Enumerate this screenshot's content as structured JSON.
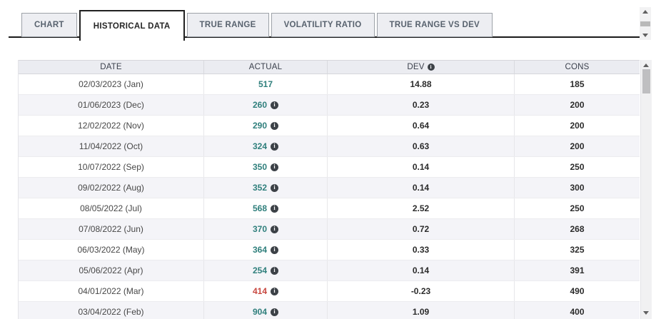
{
  "tabs": [
    {
      "label": "CHART",
      "active": false
    },
    {
      "label": "HISTORICAL DATA",
      "active": true
    },
    {
      "label": "TRUE RANGE",
      "active": false
    },
    {
      "label": "VOLATILITY RATIO",
      "active": false
    },
    {
      "label": "TRUE RANGE VS DEV",
      "active": false
    }
  ],
  "icons": {
    "info_glyph": "i"
  },
  "colors": {
    "actual_positive": "#2f7f7c",
    "actual_negative": "#c8473f"
  },
  "table": {
    "columns": [
      {
        "label": "DATE",
        "info": false
      },
      {
        "label": "ACTUAL",
        "info": false
      },
      {
        "label": "DEV",
        "info": true
      },
      {
        "label": "CONS",
        "info": false
      }
    ],
    "rows": [
      {
        "date": "02/03/2023 (Jan)",
        "actual": "517",
        "actual_color": "actual_positive",
        "has_info": false,
        "dev": "14.88",
        "cons": "185"
      },
      {
        "date": "01/06/2023 (Dec)",
        "actual": "260",
        "actual_color": "actual_positive",
        "has_info": true,
        "dev": "0.23",
        "cons": "200"
      },
      {
        "date": "12/02/2022 (Nov)",
        "actual": "290",
        "actual_color": "actual_positive",
        "has_info": true,
        "dev": "0.64",
        "cons": "200"
      },
      {
        "date": "11/04/2022 (Oct)",
        "actual": "324",
        "actual_color": "actual_positive",
        "has_info": true,
        "dev": "0.63",
        "cons": "200"
      },
      {
        "date": "10/07/2022 (Sep)",
        "actual": "350",
        "actual_color": "actual_positive",
        "has_info": true,
        "dev": "0.14",
        "cons": "250"
      },
      {
        "date": "09/02/2022 (Aug)",
        "actual": "352",
        "actual_color": "actual_positive",
        "has_info": true,
        "dev": "0.14",
        "cons": "300"
      },
      {
        "date": "08/05/2022 (Jul)",
        "actual": "568",
        "actual_color": "actual_positive",
        "has_info": true,
        "dev": "2.52",
        "cons": "250"
      },
      {
        "date": "07/08/2022 (Jun)",
        "actual": "370",
        "actual_color": "actual_positive",
        "has_info": true,
        "dev": "0.72",
        "cons": "268"
      },
      {
        "date": "06/03/2022 (May)",
        "actual": "364",
        "actual_color": "actual_positive",
        "has_info": true,
        "dev": "0.33",
        "cons": "325"
      },
      {
        "date": "05/06/2022 (Apr)",
        "actual": "254",
        "actual_color": "actual_positive",
        "has_info": true,
        "dev": "0.14",
        "cons": "391"
      },
      {
        "date": "04/01/2022 (Mar)",
        "actual": "414",
        "actual_color": "actual_negative",
        "has_info": true,
        "dev": "-0.23",
        "cons": "490"
      },
      {
        "date": "03/04/2022 (Feb)",
        "actual": "904",
        "actual_color": "actual_positive",
        "has_info": true,
        "dev": "1.09",
        "cons": "400"
      }
    ]
  }
}
